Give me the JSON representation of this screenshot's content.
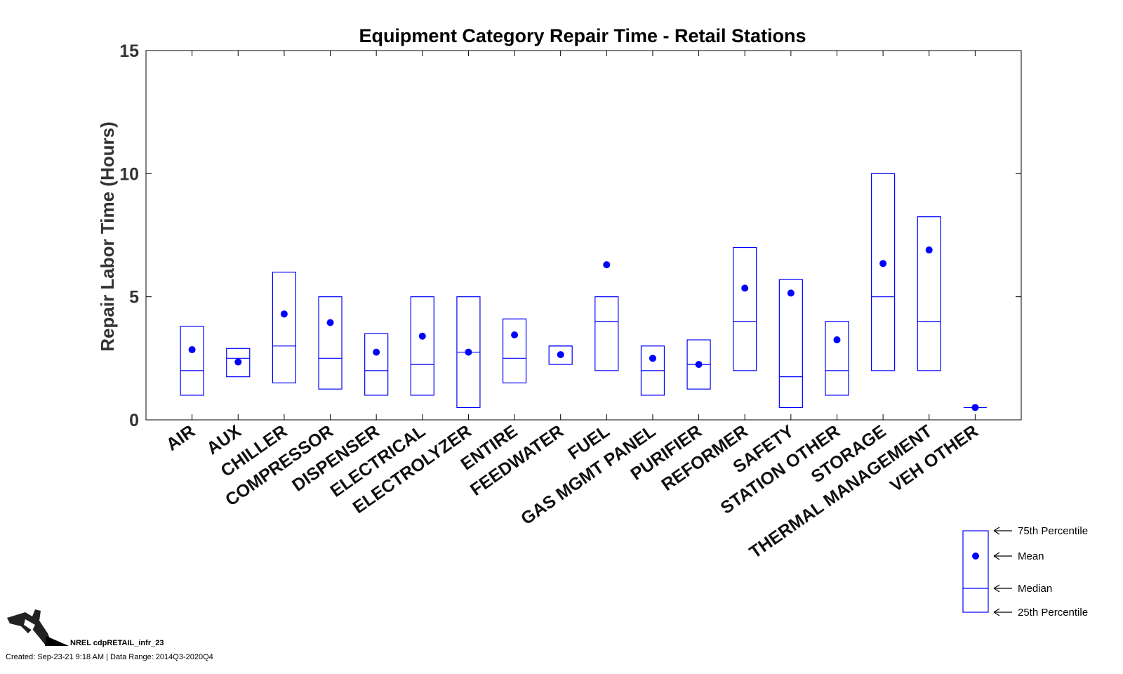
{
  "chart_data": {
    "type": "box",
    "title": "Equipment Category Repair Time - Retail Stations",
    "ylabel": "Repair Labor Time (Hours)",
    "xlabel": "",
    "ylim": [
      0,
      15
    ],
    "yticks": [
      0,
      5,
      10,
      15
    ],
    "series_color": "#0000ff",
    "categories": [
      "AIR",
      "AUX",
      "CHILLER",
      "COMPRESSOR",
      "DISPENSER",
      "ELECTRICAL",
      "ELECTROLYZER",
      "ENTIRE",
      "FEEDWATER",
      "FUEL",
      "GAS MGMT PANEL",
      "PURIFIER",
      "REFORMER",
      "SAFETY",
      "STATION OTHER",
      "STORAGE",
      "THERMAL MANAGEMENT",
      "VEH OTHER"
    ],
    "q1": [
      1.0,
      1.75,
      1.5,
      1.25,
      1.0,
      1.0,
      0.5,
      1.5,
      2.25,
      2.0,
      1.0,
      1.25,
      2.0,
      0.5,
      1.0,
      2.0,
      2.0,
      0.5
    ],
    "median": [
      2.0,
      2.5,
      3.0,
      2.5,
      2.0,
      2.25,
      2.75,
      2.5,
      3.0,
      4.0,
      2.0,
      2.25,
      4.0,
      1.75,
      2.0,
      5.0,
      4.0,
      0.5
    ],
    "q3": [
      3.8,
      2.9,
      6.0,
      5.0,
      3.5,
      5.0,
      5.0,
      4.1,
      3.0,
      5.0,
      3.0,
      3.25,
      7.0,
      5.7,
      4.0,
      10.0,
      8.25,
      0.5
    ],
    "mean": [
      2.85,
      2.35,
      4.3,
      3.95,
      2.75,
      3.4,
      2.75,
      3.45,
      2.65,
      6.3,
      2.5,
      2.25,
      5.35,
      5.15,
      3.25,
      6.35,
      6.9,
      0.5
    ],
    "legend": {
      "q3": "75th Percentile",
      "mean": "Mean",
      "median": "Median",
      "q1": "25th Percentile"
    }
  },
  "footer": {
    "chart_id": "NREL cdpRETAIL_infr_23",
    "created": "Created: Sep-23-21  9:18 AM | Data Range: 2014Q3-2020Q4"
  },
  "logo_icon": "fuel-nozzle-icon"
}
